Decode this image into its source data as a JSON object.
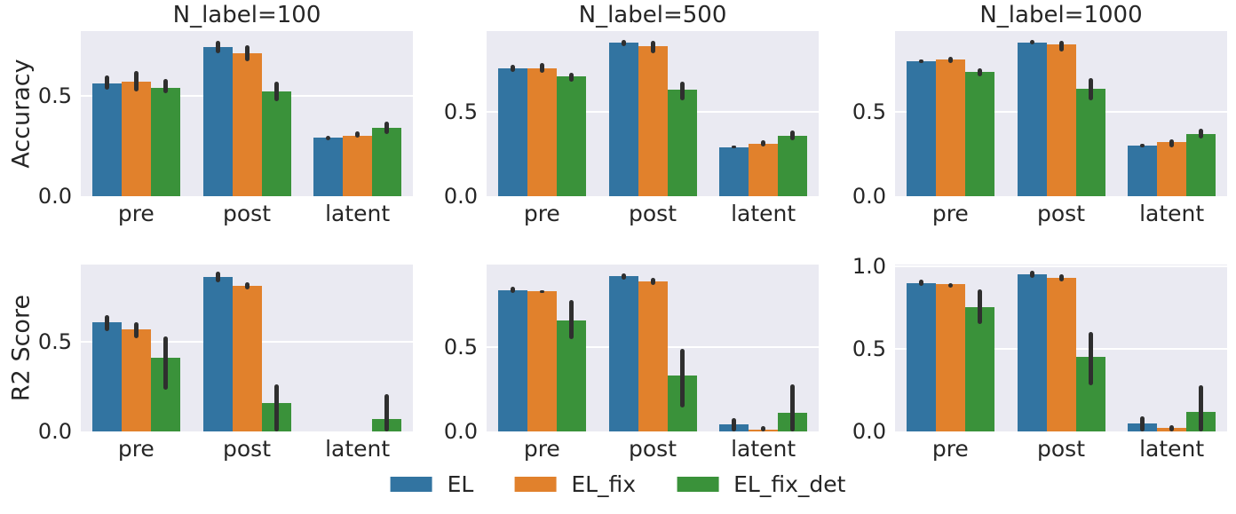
{
  "figure": {
    "background": "#ffffff",
    "axes_background": "#eaeaf2",
    "grid_color": "#ffffff",
    "text_color": "#262626",
    "errorbar_color": "#2f2f2f",
    "row_labels": [
      "Accuracy",
      "R2 Score"
    ],
    "col_titles": [
      "N_label=100",
      "N_label=500",
      "N_label=1000"
    ]
  },
  "legend": {
    "items": [
      {
        "label": "EL",
        "color": "#3274a1"
      },
      {
        "label": "EL_fix",
        "color": "#e1812c"
      },
      {
        "label": "EL_fix_det",
        "color": "#3a923a"
      }
    ]
  },
  "chart_data": [
    {
      "type": "bar",
      "row": 0,
      "col": 0,
      "title": "N_label=100",
      "ylabel": "Accuracy",
      "categories": [
        "pre",
        "post",
        "latent"
      ],
      "ylim": [
        0,
        0.82
      ],
      "grid": true,
      "yticks": [
        {
          "v": 0,
          "label": "0.0"
        },
        {
          "v": 0.5,
          "label": "0.5"
        }
      ],
      "series": [
        {
          "name": "EL",
          "color": "#3274a1",
          "values": [
            0.56,
            0.74,
            0.29
          ],
          "err_lo": [
            0.53,
            0.71,
            0.28
          ],
          "err_hi": [
            0.6,
            0.77,
            0.3
          ]
        },
        {
          "name": "EL_fix",
          "color": "#e1812c",
          "values": [
            0.57,
            0.71,
            0.3
          ],
          "err_lo": [
            0.52,
            0.67,
            0.29
          ],
          "err_hi": [
            0.62,
            0.75,
            0.32
          ]
        },
        {
          "name": "EL_fix_det",
          "color": "#3a923a",
          "values": [
            0.54,
            0.52,
            0.34
          ],
          "err_lo": [
            0.51,
            0.47,
            0.31
          ],
          "err_hi": [
            0.58,
            0.57,
            0.37
          ]
        }
      ]
    },
    {
      "type": "bar",
      "row": 0,
      "col": 1,
      "title": "N_label=500",
      "ylabel": "",
      "categories": [
        "pre",
        "post",
        "latent"
      ],
      "ylim": [
        0,
        0.98
      ],
      "grid": true,
      "yticks": [
        {
          "v": 0,
          "label": "0.0"
        },
        {
          "v": 0.5,
          "label": "0.5"
        }
      ],
      "series": [
        {
          "name": "EL",
          "color": "#3274a1",
          "values": [
            0.76,
            0.91,
            0.29
          ],
          "err_lo": [
            0.74,
            0.89,
            0.285
          ],
          "err_hi": [
            0.78,
            0.93,
            0.3
          ]
        },
        {
          "name": "EL_fix",
          "color": "#e1812c",
          "values": [
            0.76,
            0.89,
            0.31
          ],
          "err_lo": [
            0.73,
            0.85,
            0.295
          ],
          "err_hi": [
            0.79,
            0.92,
            0.33
          ]
        },
        {
          "name": "EL_fix_det",
          "color": "#3a923a",
          "values": [
            0.71,
            0.63,
            0.36
          ],
          "err_lo": [
            0.68,
            0.57,
            0.33
          ],
          "err_hi": [
            0.73,
            0.68,
            0.39
          ]
        }
      ]
    },
    {
      "type": "bar",
      "row": 0,
      "col": 2,
      "title": "N_label=1000",
      "ylabel": "",
      "categories": [
        "pre",
        "post",
        "latent"
      ],
      "ylim": [
        0,
        0.98
      ],
      "grid": true,
      "yticks": [
        {
          "v": 0,
          "label": "0.0"
        },
        {
          "v": 0.5,
          "label": "0.5"
        }
      ],
      "series": [
        {
          "name": "EL",
          "color": "#3274a1",
          "values": [
            0.8,
            0.91,
            0.3
          ],
          "err_lo": [
            0.79,
            0.9,
            0.29
          ],
          "err_hi": [
            0.81,
            0.93,
            0.31
          ]
        },
        {
          "name": "EL_fix",
          "color": "#e1812c",
          "values": [
            0.81,
            0.9,
            0.32
          ],
          "err_lo": [
            0.79,
            0.86,
            0.29
          ],
          "err_hi": [
            0.83,
            0.92,
            0.34
          ]
        },
        {
          "name": "EL_fix_det",
          "color": "#3a923a",
          "values": [
            0.74,
            0.64,
            0.37
          ],
          "err_lo": [
            0.71,
            0.57,
            0.34
          ],
          "err_hi": [
            0.76,
            0.7,
            0.4
          ]
        }
      ]
    },
    {
      "type": "bar",
      "row": 1,
      "col": 0,
      "title": "",
      "ylabel": "R2 Score",
      "categories": [
        "pre",
        "post",
        "latent"
      ],
      "ylim": [
        0,
        0.93
      ],
      "grid": true,
      "yticks": [
        {
          "v": 0,
          "label": "0.0"
        },
        {
          "v": 0.5,
          "label": "0.5"
        }
      ],
      "series": [
        {
          "name": "EL",
          "color": "#3274a1",
          "values": [
            0.61,
            0.86,
            0.0
          ],
          "err_lo": [
            0.56,
            0.83,
            0.0
          ],
          "err_hi": [
            0.65,
            0.89,
            0.0
          ]
        },
        {
          "name": "EL_fix",
          "color": "#e1812c",
          "values": [
            0.57,
            0.81,
            0.0
          ],
          "err_lo": [
            0.52,
            0.79,
            0.0
          ],
          "err_hi": [
            0.61,
            0.83,
            0.0
          ]
        },
        {
          "name": "EL_fix_det",
          "color": "#3a923a",
          "values": [
            0.41,
            0.16,
            0.07
          ],
          "err_lo": [
            0.23,
            0.0,
            0.0
          ],
          "err_hi": [
            0.53,
            0.26,
            0.21
          ]
        }
      ]
    },
    {
      "type": "bar",
      "row": 1,
      "col": 1,
      "title": "",
      "ylabel": "",
      "categories": [
        "pre",
        "post",
        "latent"
      ],
      "ylim": [
        0,
        0.99
      ],
      "grid": true,
      "yticks": [
        {
          "v": 0,
          "label": "0.0"
        },
        {
          "v": 0.5,
          "label": "0.5"
        }
      ],
      "series": [
        {
          "name": "EL",
          "color": "#3274a1",
          "values": [
            0.84,
            0.92,
            0.04
          ],
          "err_lo": [
            0.82,
            0.9,
            0.0
          ],
          "err_hi": [
            0.86,
            0.94,
            0.08
          ]
        },
        {
          "name": "EL_fix",
          "color": "#e1812c",
          "values": [
            0.83,
            0.89,
            0.01
          ],
          "err_lo": [
            0.82,
            0.87,
            0.0
          ],
          "err_hi": [
            0.84,
            0.91,
            0.03
          ]
        },
        {
          "name": "EL_fix_det",
          "color": "#3a923a",
          "values": [
            0.66,
            0.33,
            0.11
          ],
          "err_lo": [
            0.55,
            0.14,
            0.0
          ],
          "err_hi": [
            0.78,
            0.49,
            0.28
          ]
        }
      ]
    },
    {
      "type": "bar",
      "row": 1,
      "col": 2,
      "title": "",
      "ylabel": "",
      "categories": [
        "pre",
        "post",
        "latent"
      ],
      "ylim": [
        0,
        1.01
      ],
      "grid": true,
      "yticks": [
        {
          "v": 0,
          "label": "0.0"
        },
        {
          "v": 0.5,
          "label": "0.5"
        },
        {
          "v": 1.0,
          "label": "1.0"
        }
      ],
      "series": [
        {
          "name": "EL",
          "color": "#3274a1",
          "values": [
            0.9,
            0.95,
            0.05
          ],
          "err_lo": [
            0.88,
            0.93,
            0.0
          ],
          "err_hi": [
            0.92,
            0.97,
            0.09
          ]
        },
        {
          "name": "EL_fix",
          "color": "#e1812c",
          "values": [
            0.89,
            0.93,
            0.02
          ],
          "err_lo": [
            0.87,
            0.91,
            0.0
          ],
          "err_hi": [
            0.9,
            0.95,
            0.04
          ]
        },
        {
          "name": "EL_fix_det",
          "color": "#3a923a",
          "values": [
            0.75,
            0.45,
            0.12
          ],
          "err_lo": [
            0.65,
            0.28,
            0.0
          ],
          "err_hi": [
            0.86,
            0.6,
            0.28
          ]
        }
      ]
    }
  ]
}
